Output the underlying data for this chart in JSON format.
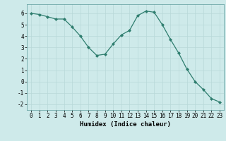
{
  "x": [
    0,
    1,
    2,
    3,
    4,
    5,
    6,
    7,
    8,
    9,
    10,
    11,
    12,
    13,
    14,
    15,
    16,
    17,
    18,
    19,
    20,
    21,
    22,
    23
  ],
  "y": [
    6.0,
    5.9,
    5.7,
    5.5,
    5.5,
    4.8,
    4.0,
    3.0,
    2.3,
    2.4,
    3.3,
    4.1,
    4.5,
    5.8,
    6.2,
    6.1,
    5.0,
    3.7,
    2.5,
    1.1,
    0.0,
    -0.7,
    -1.5,
    -1.8
  ],
  "line_color": "#2e7d6e",
  "marker": "D",
  "marker_size": 2.0,
  "bg_color": "#ceeaea",
  "grid_color": "#b8d8d8",
  "xlabel": "Humidex (Indice chaleur)",
  "ylim": [
    -2.5,
    6.8
  ],
  "xlim": [
    -0.5,
    23.5
  ],
  "yticks": [
    -2,
    -1,
    0,
    1,
    2,
    3,
    4,
    5,
    6
  ],
  "xticks": [
    0,
    1,
    2,
    3,
    4,
    5,
    6,
    7,
    8,
    9,
    10,
    11,
    12,
    13,
    14,
    15,
    16,
    17,
    18,
    19,
    20,
    21,
    22,
    23
  ],
  "label_fontsize": 6.5,
  "tick_fontsize": 5.5
}
